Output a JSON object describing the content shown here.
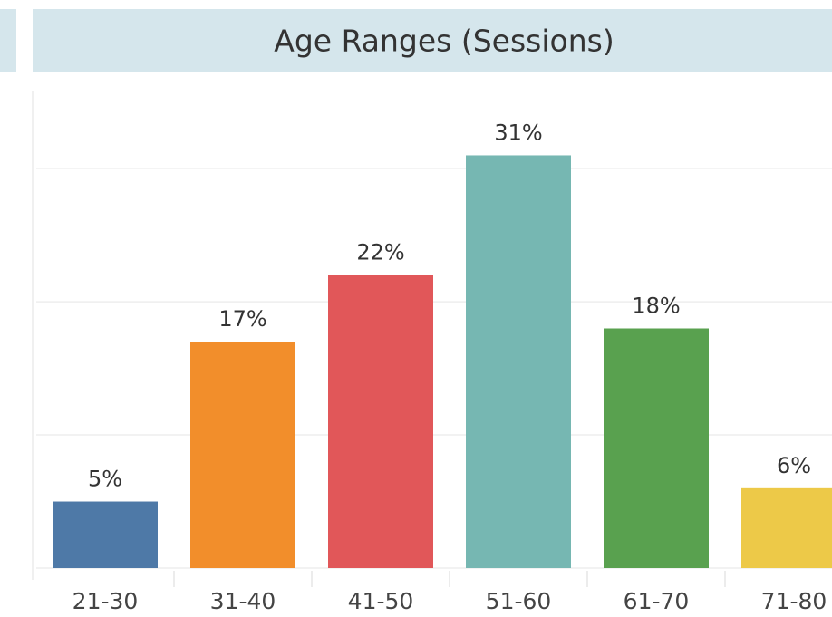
{
  "chart_data": {
    "type": "bar",
    "title": "Age Ranges (Sessions)",
    "categories": [
      "21-30",
      "31-40",
      "41-50",
      "51-60",
      "61-70",
      "71-80"
    ],
    "values": [
      5,
      17,
      22,
      31,
      18,
      6
    ],
    "value_labels": [
      "5%",
      "17%",
      "22%",
      "31%",
      "18%",
      "6%"
    ],
    "colors": [
      "#4e79a7",
      "#f28e2b",
      "#e15759",
      "#76b7b2",
      "#59a14f",
      "#edc948"
    ],
    "ylim": [
      0,
      36
    ],
    "yticks": [
      0,
      10,
      20,
      30
    ],
    "grid": true
  }
}
